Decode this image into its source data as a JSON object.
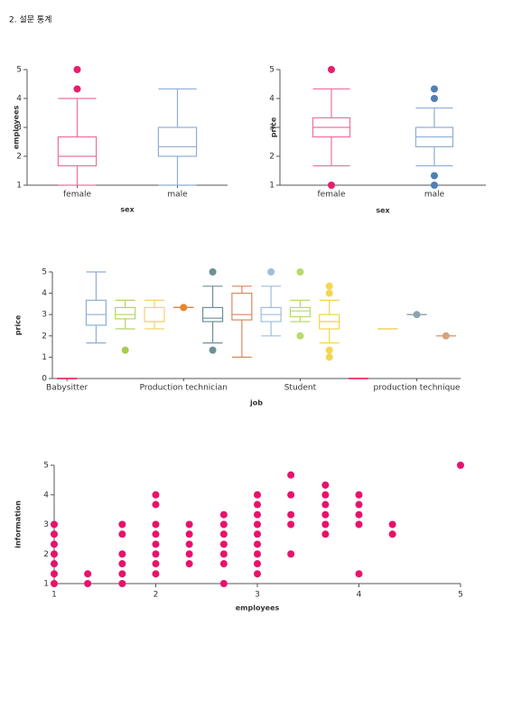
{
  "header": {
    "title": "2. 설문 통계"
  },
  "chart_data": [
    {
      "type": "box",
      "x_label": "sex",
      "y_label": "employees",
      "categories": [
        "female",
        "male"
      ],
      "ylim": [
        1,
        5
      ],
      "yticks": [
        1,
        2,
        3,
        4,
        5
      ],
      "boxes": [
        {
          "min": 1,
          "q1": 1.67,
          "median": 2,
          "q3": 2.67,
          "max": 4,
          "outliers": [
            4.33,
            5
          ],
          "color": "#ee6fa0",
          "outlier_color": "#ea1c6e"
        },
        {
          "min": 1,
          "q1": 2,
          "median": 2.33,
          "q3": 3,
          "max": 4.33,
          "outliers": [],
          "color": "#8eaed6",
          "outlier_color": "#4f7fb5"
        }
      ]
    },
    {
      "type": "box",
      "x_label": "sex",
      "y_label": "price",
      "categories": [
        "female",
        "male"
      ],
      "ylim": [
        1,
        5
      ],
      "yticks": [
        1,
        2,
        3,
        4,
        5
      ],
      "boxes": [
        {
          "min": 1.67,
          "q1": 2.67,
          "median": 3,
          "q3": 3.33,
          "max": 4.33,
          "outliers": [
            5,
            1
          ],
          "color": "#ee6fa0",
          "outlier_color": "#ea1c6e"
        },
        {
          "min": 1.67,
          "q1": 2.33,
          "median": 2.67,
          "q3": 3,
          "max": 3.67,
          "outliers": [
            4.33,
            4,
            1.33,
            1
          ],
          "color": "#8eaed6",
          "outlier_color": "#4f7fb5"
        }
      ]
    },
    {
      "type": "box",
      "x_label": "job",
      "y_label": "price",
      "categories": [
        "Babysitter",
        null,
        null,
        null,
        "Production technician",
        null,
        null,
        null,
        "Student",
        null,
        null,
        null,
        "production technique",
        null
      ],
      "ylim": [
        0,
        5
      ],
      "yticks": [
        0,
        1,
        2,
        3,
        4,
        5
      ],
      "boxes": [
        {
          "min": 0,
          "q1": 0,
          "median": 0,
          "q3": 0,
          "max": 0,
          "outliers": [],
          "color": "#e8174f",
          "outlier_color": "#e8174f"
        },
        {
          "min": 1.67,
          "q1": 2.5,
          "median": 3,
          "q3": 3.67,
          "max": 5,
          "outliers": [],
          "color": "#8eaed6",
          "outlier_color": "#8eaed6"
        },
        {
          "min": 2.33,
          "q1": 2.8,
          "median": 3,
          "q3": 3.33,
          "max": 3.67,
          "outliers": [
            1.33
          ],
          "color": "#b5d36b",
          "outlier_color": "#a6cc52"
        },
        {
          "min": 2.33,
          "q1": 2.67,
          "median": 2.67,
          "q3": 3.33,
          "max": 3.67,
          "outliers": [],
          "color": "#f2d36b",
          "outlier_color": "#f2d36b"
        },
        {
          "min": 3.33,
          "q1": 3.33,
          "median": 3.33,
          "q3": 3.33,
          "max": 3.33,
          "outliers": [
            3.33
          ],
          "color": "#f5821f",
          "outlier_color": "#f5821f"
        },
        {
          "min": 1.67,
          "q1": 2.67,
          "median": 2.83,
          "q3": 3.33,
          "max": 4.33,
          "outliers": [
            5,
            1.33
          ],
          "color": "#6f8f96",
          "outlier_color": "#6f8f96"
        },
        {
          "min": 1,
          "q1": 2.75,
          "median": 3,
          "q3": 4,
          "max": 4.33,
          "outliers": [],
          "color": "#d9895b",
          "outlier_color": "#d9895b"
        },
        {
          "min": 2,
          "q1": 2.67,
          "median": 3,
          "q3": 3.33,
          "max": 4.33,
          "outliers": [
            5
          ],
          "color": "#9dbfe0",
          "outlier_color": "#9dbfe0"
        },
        {
          "min": 2.67,
          "q1": 2.9,
          "median": 3.17,
          "q3": 3.33,
          "max": 3.67,
          "outliers": [
            5,
            2
          ],
          "color": "#b7da6a",
          "outlier_color": "#b7da6a"
        },
        {
          "min": 1.67,
          "q1": 2.33,
          "median": 2.67,
          "q3": 3,
          "max": 3.67,
          "outliers": [
            4.33,
            4,
            1.33,
            1
          ],
          "color": "#f2d34e",
          "outlier_color": "#f5d64e"
        },
        {
          "min": 0,
          "q1": 0,
          "median": 0,
          "q3": 0,
          "max": 0,
          "outliers": [],
          "color": "#e8174f",
          "outlier_color": "#e8174f"
        },
        {
          "min": 2.33,
          "q1": 2.33,
          "median": 2.33,
          "q3": 2.33,
          "max": 2.33,
          "outliers": [],
          "color": "#f2d36b",
          "outlier_color": "#f2d36b"
        },
        {
          "min": 3,
          "q1": 3,
          "median": 3,
          "q3": 3,
          "max": 3,
          "outliers": [
            3
          ],
          "color": "#8aa4ad",
          "outlier_color": "#8aa4ad"
        },
        {
          "min": 2,
          "q1": 2,
          "median": 2,
          "q3": 2,
          "max": 2,
          "outliers": [
            2
          ],
          "color": "#d9a27b",
          "outlier_color": "#d9a27b"
        }
      ]
    },
    {
      "type": "scatter",
      "x_label": "employees",
      "y_label": "information",
      "color": "#e8126b",
      "xlim": [
        1,
        5
      ],
      "ylim": [
        1,
        5
      ],
      "xticks": [
        1,
        2,
        3,
        4,
        5
      ],
      "yticks": [
        1,
        2,
        3,
        4,
        5
      ],
      "x": [
        1,
        1,
        1,
        1,
        1,
        1,
        1,
        1.33,
        1.33,
        1.67,
        1.67,
        1.67,
        1.67,
        1.67,
        1.67,
        2,
        2,
        2,
        2,
        2,
        2,
        2,
        2,
        2.33,
        2.33,
        2.33,
        2.33,
        2.33,
        2.67,
        2.67,
        2.67,
        2.67,
        2.67,
        2.67,
        2.67,
        3,
        3,
        3,
        3,
        3,
        3,
        3,
        3,
        3,
        3.33,
        3.33,
        3.33,
        3.33,
        3.33,
        3.67,
        3.67,
        3.67,
        3.67,
        3.67,
        3.67,
        4,
        4,
        4,
        4,
        4,
        4.33,
        4.33,
        5
      ],
      "values": [
        3,
        2.67,
        2.33,
        2,
        1.67,
        1.33,
        1,
        1.33,
        1,
        3,
        2.67,
        2,
        1.67,
        1.33,
        1,
        4,
        3.67,
        3,
        2.67,
        2.33,
        2,
        1.67,
        1.33,
        3,
        2.67,
        2.33,
        2,
        1.67,
        3.33,
        3,
        2.67,
        2.33,
        2,
        1.67,
        1,
        4,
        3.67,
        3.33,
        3,
        2.67,
        2.33,
        2,
        1.67,
        1.33,
        4.67,
        4,
        3.33,
        3,
        2,
        4.33,
        4,
        3.67,
        3.33,
        3,
        2.67,
        4,
        3.67,
        3.33,
        3,
        1.33,
        3,
        2.67,
        5
      ]
    }
  ]
}
